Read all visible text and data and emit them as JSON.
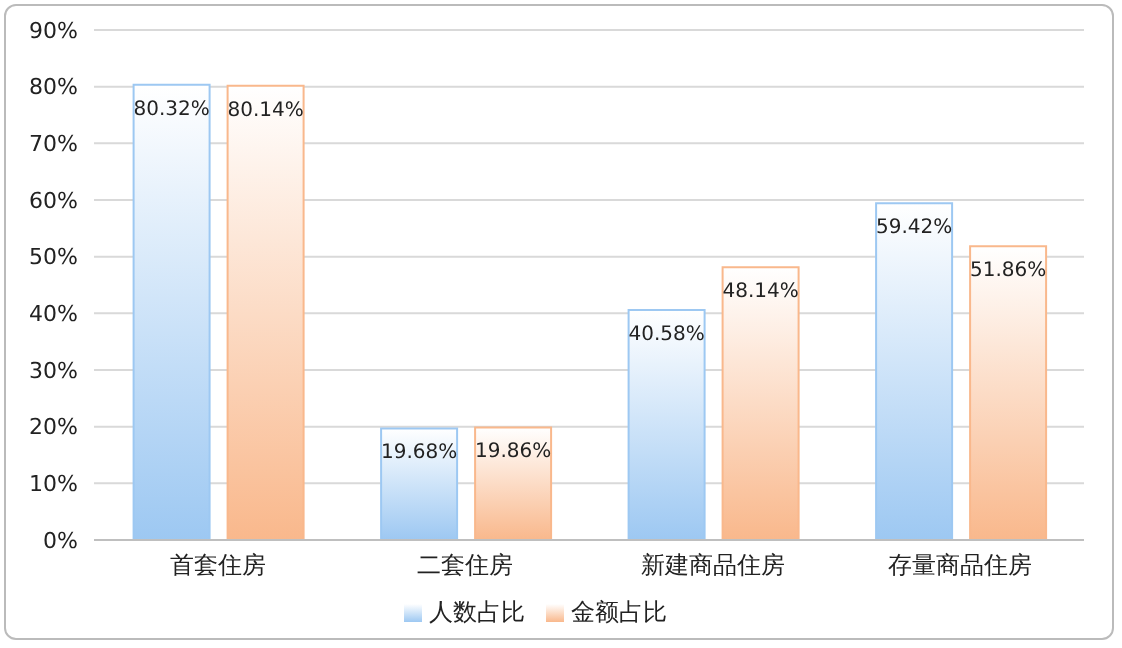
{
  "chart_data": {
    "type": "bar",
    "categories": [
      "首套住房",
      "二套住房",
      "新建商品住房",
      "存量商品住房"
    ],
    "series": [
      {
        "name": "人数占比",
        "color": "#9dc8f2",
        "values": [
          80.32,
          19.68,
          40.58,
          59.42
        ],
        "value_labels": [
          "80.32%",
          "19.68%",
          "40.58%",
          "59.42%"
        ]
      },
      {
        "name": "金额占比",
        "color": "#f9b88c",
        "values": [
          80.14,
          19.86,
          48.14,
          51.86
        ],
        "value_labels": [
          "80.14%",
          "19.86%",
          "48.14%",
          "51.86%"
        ]
      }
    ],
    "ylim": [
      0,
      90
    ],
    "yticks": [
      {
        "value": 0,
        "label": "0%"
      },
      {
        "value": 10,
        "label": "10%"
      },
      {
        "value": 20,
        "label": "20%"
      },
      {
        "value": 30,
        "label": "30%"
      },
      {
        "value": 40,
        "label": "40%"
      },
      {
        "value": 50,
        "label": "50%"
      },
      {
        "value": 60,
        "label": "60%"
      },
      {
        "value": 70,
        "label": "70%"
      },
      {
        "value": 80,
        "label": "80%"
      },
      {
        "value": 90,
        "label": "90%"
      }
    ],
    "grid": "y",
    "legend": "bottom"
  }
}
